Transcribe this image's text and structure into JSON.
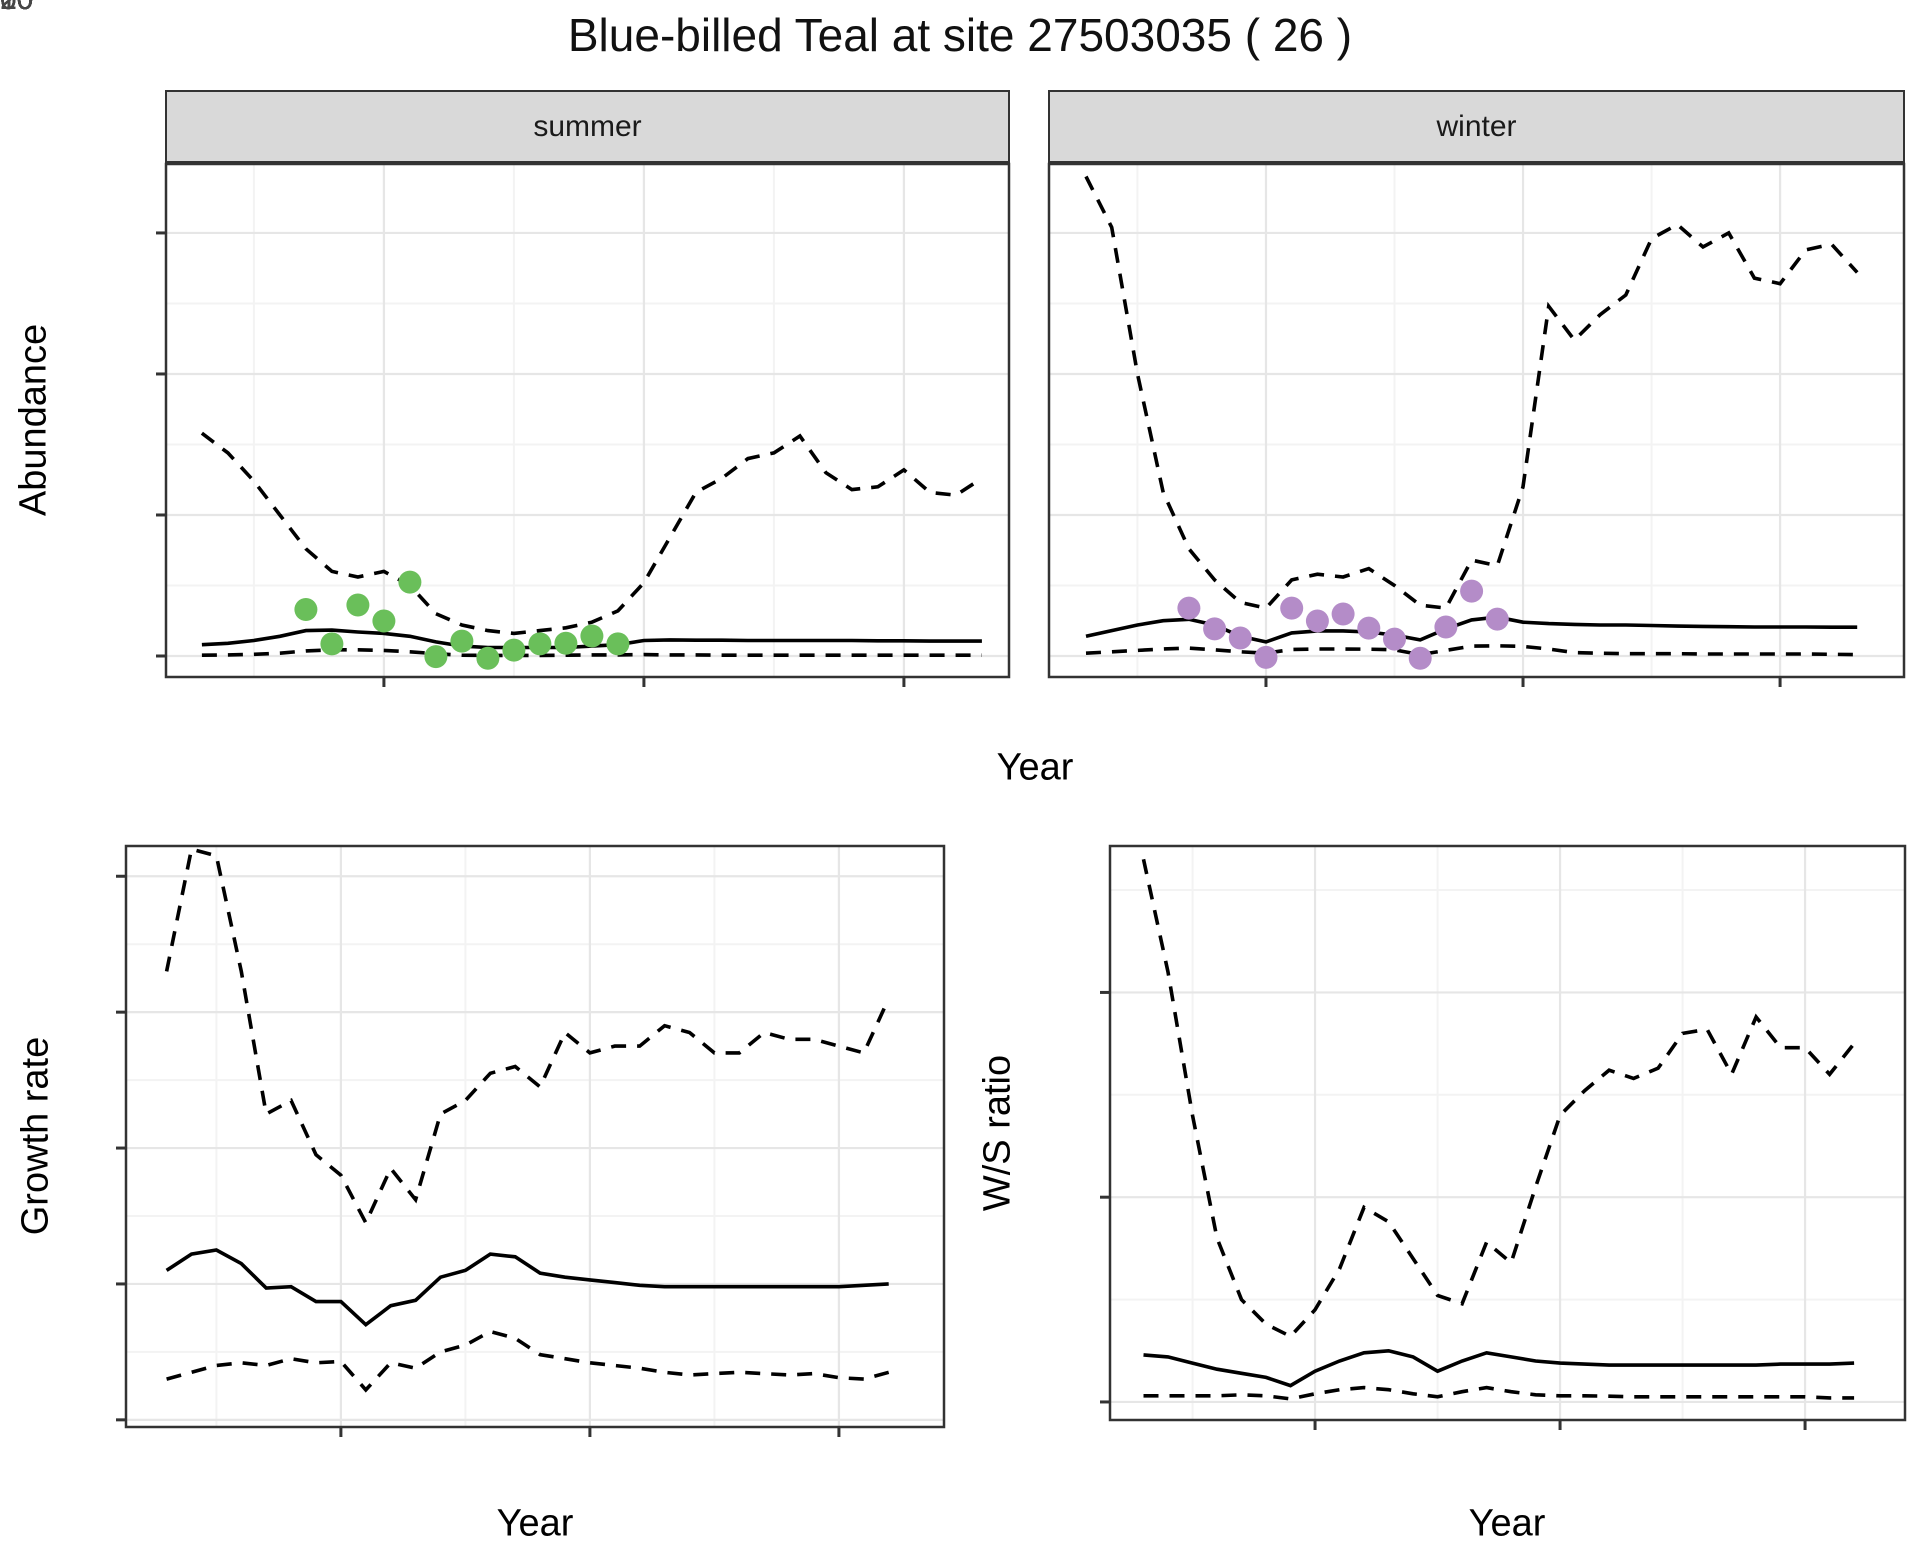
{
  "title": "Blue-billed Teal at site 27503035 ( 26 )",
  "colors": {
    "summer_points": "#6abf5a",
    "winter_points": "#b48cc8",
    "line": "#000000",
    "strip_bg": "#d9d9d9",
    "panel_border": "#333333",
    "grid_major": "#e6e6e6",
    "grid_minor": "#f3f3f3",
    "tick_text": "#474747"
  },
  "chart_data": [
    {
      "id": "abundance",
      "type": "line",
      "ylabel": "Abundance",
      "xlabel": "Year",
      "x_ticks": [
        2000,
        2010,
        2020
      ],
      "y_ticks": [
        0,
        50,
        100,
        150
      ],
      "x": [
        1993,
        1994,
        1995,
        1996,
        1997,
        1998,
        1999,
        2000,
        2001,
        2002,
        2003,
        2004,
        2005,
        2006,
        2007,
        2008,
        2009,
        2010,
        2011,
        2012,
        2013,
        2014,
        2015,
        2016,
        2017,
        2018,
        2019,
        2020,
        2021,
        2022,
        2023
      ],
      "facets": [
        {
          "label": "summer",
          "point_color": "summer_points",
          "series": [
            {
              "name": "upper_ci",
              "style": "dashed",
              "values": [
                79,
                72,
                62,
                50,
                38,
                30,
                28,
                30,
                25,
                15,
                11,
                9,
                8,
                9,
                10,
                12,
                16,
                26,
                42,
                58,
                63,
                70,
                72,
                78,
                65,
                59,
                60,
                66,
                58,
                57,
                63
              ]
            },
            {
              "name": "median",
              "style": "solid",
              "values": [
                4,
                4.5,
                5.5,
                7,
                9,
                9.2,
                8.5,
                8,
                7,
                5,
                3.5,
                3,
                3,
                3,
                3,
                3.5,
                4,
                5.5,
                5.7,
                5.6,
                5.6,
                5.5,
                5.5,
                5.5,
                5.5,
                5.5,
                5.4,
                5.4,
                5.3,
                5.3,
                5.3
              ]
            },
            {
              "name": "lower_ci",
              "style": "dashed",
              "values": [
                0.3,
                0.4,
                0.6,
                1,
                1.8,
                2.2,
                2.2,
                2,
                1.5,
                0.8,
                0.3,
                0.2,
                0.2,
                0.2,
                0.3,
                0.4,
                0.4,
                0.5,
                0.4,
                0.4,
                0.3,
                0.3,
                0.3,
                0.3,
                0.3,
                0.3,
                0.3,
                0.3,
                0.3,
                0.3,
                0.3
              ]
            }
          ],
          "observed_points": [
            [
              1997,
              16.5
            ],
            [
              1998,
              4.3
            ],
            [
              1999,
              18.1
            ],
            [
              2000,
              12.4
            ],
            [
              2001,
              26.2
            ],
            [
              2002,
              -0.2
            ],
            [
              2003,
              5.3
            ],
            [
              2004,
              -0.8
            ],
            [
              2005,
              2.1
            ],
            [
              2006,
              4.3
            ],
            [
              2007,
              4.5
            ],
            [
              2008,
              7.1
            ],
            [
              2009,
              4.3
            ]
          ]
        },
        {
          "label": "winter",
          "point_color": "winter_points",
          "series": [
            {
              "name": "upper_ci",
              "style": "dashed",
              "values": [
                170,
                152,
                100,
                58,
                38,
                27,
                19,
                17,
                27,
                29,
                28,
                31,
                25,
                18,
                17,
                34,
                32,
                60,
                124,
                112,
                121,
                128,
                148,
                153,
                145,
                150,
                134,
                132,
                144,
                146,
                136
              ]
            },
            {
              "name": "median",
              "style": "solid",
              "values": [
                7,
                9,
                11,
                12.5,
                13,
                11,
                7,
                5,
                8.2,
                8.9,
                8.9,
                8.5,
                7.4,
                5.7,
                9.6,
                12.8,
                13.8,
                12,
                11.5,
                11.2,
                11,
                11,
                10.8,
                10.6,
                10.5,
                10.4,
                10.3,
                10.3,
                10.3,
                10.2,
                10.2
              ]
            },
            {
              "name": "lower_ci",
              "style": "dashed",
              "values": [
                1,
                1.5,
                2,
                2.5,
                2.8,
                2.2,
                1.5,
                1,
                2.3,
                2.5,
                2.5,
                2.4,
                2.2,
                0.5,
                2,
                3.5,
                3.6,
                3.4,
                2.5,
                1.2,
                1,
                0.8,
                0.8,
                0.8,
                0.7,
                0.7,
                0.7,
                0.7,
                0.7,
                0.6,
                0.5
              ]
            }
          ],
          "observed_points": [
            [
              1997,
              17
            ],
            [
              1998,
              9.6
            ],
            [
              1999,
              6.4
            ],
            [
              2000,
              -0.5
            ],
            [
              2001,
              17
            ],
            [
              2002,
              12.4
            ],
            [
              2003,
              14.9
            ],
            [
              2004,
              9.9
            ],
            [
              2005,
              6
            ],
            [
              2006,
              -0.8
            ],
            [
              2007,
              10.3
            ],
            [
              2008,
              23
            ],
            [
              2009,
              13.1
            ]
          ]
        }
      ]
    },
    {
      "id": "growth_rate",
      "type": "line",
      "ylabel": "Growth rate",
      "xlabel": "Year",
      "x_ticks": [
        2000,
        2010,
        2020
      ],
      "y_ticks": [
        0,
        1,
        2,
        3,
        4
      ],
      "x": [
        1993,
        1994,
        1995,
        1996,
        1997,
        1998,
        1999,
        2000,
        2001,
        2002,
        2003,
        2004,
        2005,
        2006,
        2007,
        2008,
        2009,
        2010,
        2011,
        2012,
        2013,
        2014,
        2015,
        2016,
        2017,
        2018,
        2019,
        2020,
        2021,
        2022
      ],
      "series": [
        {
          "name": "upper_ci",
          "style": "dashed",
          "values": [
            3.3,
            4.2,
            4.15,
            3.3,
            2.25,
            2.35,
            1.95,
            1.8,
            1.45,
            1.85,
            1.62,
            2.25,
            2.35,
            2.55,
            2.6,
            2.45,
            2.85,
            2.7,
            2.75,
            2.75,
            2.9,
            2.85,
            2.7,
            2.7,
            2.85,
            2.8,
            2.8,
            2.75,
            2.7,
            3.1
          ]
        },
        {
          "name": "median",
          "style": "solid",
          "values": [
            1.1,
            1.22,
            1.25,
            1.15,
            0.97,
            0.98,
            0.87,
            0.87,
            0.7,
            0.84,
            0.88,
            1.05,
            1.1,
            1.22,
            1.2,
            1.08,
            1.05,
            1.03,
            1.01,
            0.99,
            0.98,
            0.98,
            0.98,
            0.98,
            0.98,
            0.98,
            0.98,
            0.98,
            0.99,
            1.0
          ]
        },
        {
          "name": "lower_ci",
          "style": "dashed",
          "values": [
            0.3,
            0.35,
            0.4,
            0.42,
            0.4,
            0.45,
            0.42,
            0.43,
            0.22,
            0.42,
            0.38,
            0.5,
            0.55,
            0.65,
            0.6,
            0.48,
            0.45,
            0.42,
            0.4,
            0.38,
            0.35,
            0.33,
            0.34,
            0.35,
            0.34,
            0.33,
            0.34,
            0.31,
            0.3,
            0.35
          ]
        }
      ]
    },
    {
      "id": "ws_ratio",
      "type": "line",
      "ylabel": "W/S ratio",
      "xlabel": "Year",
      "x_ticks": [
        2000,
        2010,
        2020
      ],
      "y_ticks": [
        0,
        10,
        20
      ],
      "x": [
        1993,
        1994,
        1995,
        1996,
        1997,
        1998,
        1999,
        2000,
        2001,
        2002,
        2003,
        2004,
        2005,
        2006,
        2007,
        2008,
        2009,
        2010,
        2011,
        2012,
        2013,
        2014,
        2015,
        2016,
        2017,
        2018,
        2019,
        2020,
        2021,
        2022
      ],
      "series": [
        {
          "name": "upper_ci",
          "style": "dashed",
          "values": [
            26.5,
            21,
            14,
            8,
            5,
            3.8,
            3.2,
            4.5,
            6.5,
            9.5,
            8.8,
            7,
            5.2,
            4.8,
            7.8,
            6.8,
            10.5,
            14,
            15.2,
            16.2,
            15.8,
            16.3,
            18,
            18.2,
            16,
            18.8,
            17.3,
            17.3,
            16,
            17.5
          ]
        },
        {
          "name": "median",
          "style": "solid",
          "values": [
            2.3,
            2.2,
            1.9,
            1.6,
            1.4,
            1.2,
            0.8,
            1.5,
            2,
            2.4,
            2.5,
            2.2,
            1.5,
            2,
            2.4,
            2.2,
            2,
            1.9,
            1.85,
            1.8,
            1.8,
            1.8,
            1.8,
            1.8,
            1.8,
            1.8,
            1.85,
            1.85,
            1.85,
            1.9
          ]
        },
        {
          "name": "lower_ci",
          "style": "dashed",
          "values": [
            0.3,
            0.3,
            0.3,
            0.3,
            0.35,
            0.3,
            0.15,
            0.4,
            0.6,
            0.7,
            0.6,
            0.4,
            0.25,
            0.5,
            0.7,
            0.5,
            0.35,
            0.3,
            0.3,
            0.28,
            0.25,
            0.25,
            0.25,
            0.25,
            0.25,
            0.25,
            0.25,
            0.25,
            0.2,
            0.2
          ]
        }
      ]
    }
  ]
}
